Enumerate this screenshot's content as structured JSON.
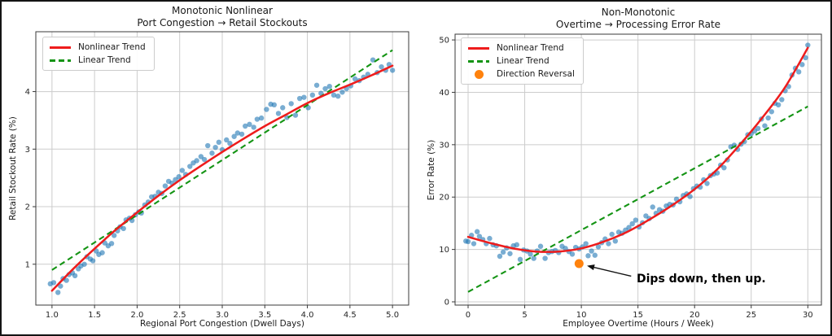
{
  "figure": {
    "background": "#ffffff",
    "border_color": "#141414",
    "grid_color": "#cccccc",
    "spine_color": "#3a3a3a",
    "text_color": "#1a1a1a",
    "tick_label_color": "#262626"
  },
  "chart_data": [
    {
      "type": "scatter",
      "title_lines": [
        "Monotonic Nonlinear",
        "Port Congestion → Retail Stockouts"
      ],
      "xlabel": "Regional Port Congestion (Dwell Days)",
      "ylabel": "Retail Stockout Rate (%)",
      "xlim": [
        0.81,
        5.19
      ],
      "ylim": [
        0.29,
        5.04
      ],
      "xticks": [
        1.0,
        1.5,
        2.0,
        2.5,
        3.0,
        3.5,
        4.0,
        4.5,
        5.0
      ],
      "xtick_labels": [
        "1.0",
        "1.5",
        "2.0",
        "2.5",
        "3.0",
        "3.5",
        "4.0",
        "4.5",
        "5.0"
      ],
      "yticks": [
        1,
        2,
        3,
        4
      ],
      "ytick_labels": [
        "1",
        "2",
        "3",
        "4"
      ],
      "grid": true,
      "legend": {
        "position": "upper-left",
        "entries": [
          {
            "label": "Nonlinear Trend",
            "type": "line",
            "dash": false,
            "color": "#ee1c1c"
          },
          {
            "label": "Linear Trend",
            "type": "line",
            "dash": true,
            "color": "#149414"
          }
        ]
      },
      "scatter": {
        "color": "#1f77b4",
        "opacity": 0.6,
        "points": [
          [
            0.98,
            0.66
          ],
          [
            1.02,
            0.68
          ],
          [
            1.07,
            0.51
          ],
          [
            1.1,
            0.62
          ],
          [
            1.13,
            0.75
          ],
          [
            1.17,
            0.72
          ],
          [
            1.2,
            0.82
          ],
          [
            1.24,
            0.85
          ],
          [
            1.27,
            0.8
          ],
          [
            1.31,
            0.92
          ],
          [
            1.34,
            0.97
          ],
          [
            1.38,
            1.0
          ],
          [
            1.41,
            1.13
          ],
          [
            1.45,
            1.09
          ],
          [
            1.48,
            1.06
          ],
          [
            1.52,
            1.23
          ],
          [
            1.55,
            1.17
          ],
          [
            1.59,
            1.2
          ],
          [
            1.62,
            1.37
          ],
          [
            1.66,
            1.32
          ],
          [
            1.7,
            1.36
          ],
          [
            1.73,
            1.5
          ],
          [
            1.77,
            1.58
          ],
          [
            1.8,
            1.65
          ],
          [
            1.84,
            1.62
          ],
          [
            1.87,
            1.77
          ],
          [
            1.91,
            1.8
          ],
          [
            1.94,
            1.76
          ],
          [
            1.98,
            1.86
          ],
          [
            2.02,
            1.91
          ],
          [
            2.05,
            1.89
          ],
          [
            2.09,
            2.03
          ],
          [
            2.13,
            2.08
          ],
          [
            2.17,
            2.17
          ],
          [
            2.21,
            2.18
          ],
          [
            2.25,
            2.25
          ],
          [
            2.29,
            2.23
          ],
          [
            2.33,
            2.36
          ],
          [
            2.37,
            2.44
          ],
          [
            2.41,
            2.41
          ],
          [
            2.45,
            2.47
          ],
          [
            2.49,
            2.52
          ],
          [
            2.53,
            2.63
          ],
          [
            2.57,
            2.56
          ],
          [
            2.62,
            2.7
          ],
          [
            2.66,
            2.76
          ],
          [
            2.7,
            2.8
          ],
          [
            2.75,
            2.87
          ],
          [
            2.79,
            2.82
          ],
          [
            2.83,
            3.06
          ],
          [
            2.88,
            2.93
          ],
          [
            2.92,
            3.03
          ],
          [
            2.96,
            3.12
          ],
          [
            3.0,
            2.99
          ],
          [
            3.05,
            3.16
          ],
          [
            3.09,
            3.1
          ],
          [
            3.14,
            3.22
          ],
          [
            3.18,
            3.28
          ],
          [
            3.23,
            3.26
          ],
          [
            3.27,
            3.4
          ],
          [
            3.32,
            3.43
          ],
          [
            3.37,
            3.38
          ],
          [
            3.41,
            3.52
          ],
          [
            3.46,
            3.54
          ],
          [
            3.52,
            3.69
          ],
          [
            3.57,
            3.78
          ],
          [
            3.61,
            3.77
          ],
          [
            3.66,
            3.62
          ],
          [
            3.71,
            3.72
          ],
          [
            3.76,
            3.55
          ],
          [
            3.81,
            3.79
          ],
          [
            3.86,
            3.59
          ],
          [
            3.91,
            3.88
          ],
          [
            3.96,
            3.9
          ],
          [
            4.01,
            3.72
          ],
          [
            4.06,
            3.94
          ],
          [
            4.11,
            4.11
          ],
          [
            4.16,
            3.97
          ],
          [
            4.21,
            4.05
          ],
          [
            4.26,
            4.09
          ],
          [
            4.31,
            3.94
          ],
          [
            4.36,
            3.92
          ],
          [
            4.41,
            3.99
          ],
          [
            4.46,
            4.05
          ],
          [
            4.51,
            4.1
          ],
          [
            4.56,
            4.22
          ],
          [
            4.61,
            4.19
          ],
          [
            4.66,
            4.25
          ],
          [
            4.71,
            4.3
          ],
          [
            4.77,
            4.55
          ],
          [
            4.82,
            4.33
          ],
          [
            4.87,
            4.43
          ],
          [
            4.92,
            4.37
          ],
          [
            4.96,
            4.47
          ],
          [
            5.0,
            4.37
          ]
        ]
      },
      "nonlinear_trend": {
        "color": "#ee1c1c",
        "points": [
          [
            1.0,
            0.54
          ],
          [
            1.25,
            0.92
          ],
          [
            1.5,
            1.27
          ],
          [
            1.75,
            1.6
          ],
          [
            2.0,
            1.9
          ],
          [
            2.25,
            2.19
          ],
          [
            2.5,
            2.46
          ],
          [
            2.75,
            2.71
          ],
          [
            3.0,
            2.95
          ],
          [
            3.25,
            3.18
          ],
          [
            3.5,
            3.4
          ],
          [
            3.75,
            3.6
          ],
          [
            4.0,
            3.8
          ],
          [
            4.25,
            3.97
          ],
          [
            4.5,
            4.12
          ],
          [
            4.75,
            4.28
          ],
          [
            5.0,
            4.45
          ]
        ]
      },
      "linear_trend": {
        "color": "#149414",
        "points": [
          [
            1.0,
            0.9
          ],
          [
            5.0,
            4.72
          ]
        ]
      }
    },
    {
      "type": "scatter",
      "title_lines": [
        "Non-Monotonic",
        "Overtime → Processing Error Rate"
      ],
      "xlabel": "Employee Overtime (Hours / Week)",
      "ylabel": "Error Rate (%)",
      "xlim": [
        -1.15,
        31.2
      ],
      "ylim": [
        -0.62,
        51.1
      ],
      "xticks": [
        0,
        5,
        10,
        15,
        20,
        25,
        30
      ],
      "xtick_labels": [
        "0",
        "5",
        "10",
        "15",
        "20",
        "25",
        "30"
      ],
      "yticks": [
        0,
        10,
        20,
        30,
        40,
        50
      ],
      "ytick_labels": [
        "0",
        "10",
        "20",
        "30",
        "40",
        "50"
      ],
      "grid": true,
      "legend": {
        "position": "upper-left",
        "entries": [
          {
            "label": "Nonlinear Trend",
            "type": "line",
            "dash": false,
            "color": "#ee1c1c"
          },
          {
            "label": "Linear Trend",
            "type": "line",
            "dash": true,
            "color": "#149414"
          },
          {
            "label": "Direction Reversal",
            "type": "marker",
            "marker": "circle",
            "color": "#ff820d"
          }
        ]
      },
      "scatter": {
        "color": "#1f77b4",
        "opacity": 0.6,
        "points": [
          [
            -0.2,
            11.6
          ],
          [
            0.0,
            11.5
          ],
          [
            0.3,
            12.7
          ],
          [
            0.5,
            11.1
          ],
          [
            0.8,
            13.4
          ],
          [
            1.0,
            12.5
          ],
          [
            1.3,
            11.9
          ],
          [
            1.6,
            11.1
          ],
          [
            1.9,
            12.1
          ],
          [
            2.2,
            10.9
          ],
          [
            2.5,
            10.7
          ],
          [
            2.8,
            8.7
          ],
          [
            3.1,
            9.5
          ],
          [
            3.4,
            10.3
          ],
          [
            3.7,
            9.2
          ],
          [
            4.0,
            10.7
          ],
          [
            4.3,
            10.9
          ],
          [
            4.6,
            8.1
          ],
          [
            4.9,
            9.9
          ],
          [
            5.2,
            9.7
          ],
          [
            5.5,
            9.1
          ],
          [
            5.8,
            8.3
          ],
          [
            6.1,
            9.7
          ],
          [
            6.4,
            10.6
          ],
          [
            6.8,
            8.3
          ],
          [
            7.1,
            9.4
          ],
          [
            7.4,
            9.6
          ],
          [
            7.7,
            9.8
          ],
          [
            8.0,
            9.4
          ],
          [
            8.3,
            10.6
          ],
          [
            8.6,
            10.2
          ],
          [
            8.9,
            9.6
          ],
          [
            9.2,
            9.1
          ],
          [
            9.5,
            10.4
          ],
          [
            9.8,
            10.1
          ],
          [
            10.1,
            10.5
          ],
          [
            10.4,
            11.1
          ],
          [
            10.6,
            8.8
          ],
          [
            10.9,
            9.7
          ],
          [
            11.2,
            8.9
          ],
          [
            11.5,
            10.5
          ],
          [
            11.8,
            11.3
          ],
          [
            12.1,
            12.0
          ],
          [
            12.4,
            11.1
          ],
          [
            12.7,
            12.9
          ],
          [
            13.0,
            11.6
          ],
          [
            13.3,
            13.3
          ],
          [
            13.6,
            13.1
          ],
          [
            13.9,
            13.7
          ],
          [
            14.2,
            14.2
          ],
          [
            14.5,
            14.9
          ],
          [
            14.8,
            15.6
          ],
          [
            15.1,
            14.3
          ],
          [
            15.4,
            15.1
          ],
          [
            15.7,
            16.4
          ],
          [
            16.0,
            15.9
          ],
          [
            16.3,
            18.1
          ],
          [
            16.6,
            16.9
          ],
          [
            16.9,
            17.6
          ],
          [
            17.2,
            17.3
          ],
          [
            17.5,
            18.3
          ],
          [
            17.8,
            18.6
          ],
          [
            18.1,
            18.5
          ],
          [
            18.4,
            19.6
          ],
          [
            18.7,
            19.1
          ],
          [
            19.0,
            20.3
          ],
          [
            19.3,
            20.6
          ],
          [
            19.6,
            20.1
          ],
          [
            19.9,
            21.6
          ],
          [
            20.2,
            22.1
          ],
          [
            20.5,
            21.9
          ],
          [
            20.8,
            23.3
          ],
          [
            21.1,
            22.6
          ],
          [
            21.4,
            24.1
          ],
          [
            21.7,
            24.4
          ],
          [
            22.0,
            24.6
          ],
          [
            22.3,
            26.1
          ],
          [
            22.6,
            25.6
          ],
          [
            22.9,
            27.1
          ],
          [
            23.2,
            29.6
          ],
          [
            23.5,
            29.9
          ],
          [
            23.8,
            29.1
          ],
          [
            24.1,
            30.1
          ],
          [
            24.4,
            30.6
          ],
          [
            24.7,
            31.9
          ],
          [
            25.0,
            32.1
          ],
          [
            25.3,
            32.6
          ],
          [
            25.6,
            33.1
          ],
          [
            25.9,
            34.9
          ],
          [
            26.2,
            33.6
          ],
          [
            26.5,
            35.1
          ],
          [
            26.8,
            36.3
          ],
          [
            27.1,
            37.9
          ],
          [
            27.4,
            37.6
          ],
          [
            27.7,
            38.6
          ],
          [
            28.0,
            40.3
          ],
          [
            28.3,
            41.1
          ],
          [
            28.6,
            43.3
          ],
          [
            28.9,
            44.6
          ],
          [
            29.2,
            43.9
          ],
          [
            29.5,
            45.3
          ],
          [
            29.8,
            46.6
          ],
          [
            30.0,
            49.0
          ]
        ]
      },
      "nonlinear_trend": {
        "color": "#ee1c1c",
        "points": [
          [
            0,
            12.4
          ],
          [
            2,
            11.2
          ],
          [
            4,
            10.2
          ],
          [
            6,
            9.6
          ],
          [
            8,
            9.6
          ],
          [
            10,
            10.2
          ],
          [
            12,
            11.5
          ],
          [
            14,
            13.3
          ],
          [
            16,
            15.7
          ],
          [
            18,
            18.4
          ],
          [
            20,
            21.5
          ],
          [
            22,
            25.3
          ],
          [
            24,
            30.0
          ],
          [
            26,
            35.2
          ],
          [
            28,
            41.0
          ],
          [
            30,
            48.5
          ]
        ]
      },
      "linear_trend": {
        "color": "#149414",
        "points": [
          [
            0,
            1.9
          ],
          [
            30,
            37.3
          ]
        ]
      },
      "reversal_point": {
        "color": "#ff820d",
        "xy": [
          9.8,
          7.3
        ]
      },
      "annotation": {
        "text": "Dips down, then up.",
        "arrow_from": [
          14.4,
          4.9
        ],
        "arrow_to": [
          10.5,
          6.9
        ],
        "arrow_color": "#111111"
      }
    }
  ]
}
